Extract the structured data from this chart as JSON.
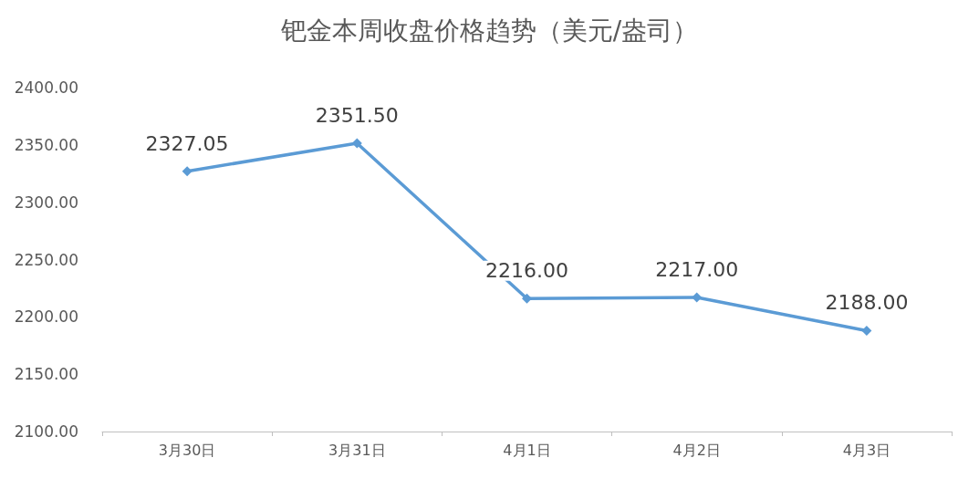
{
  "chart_data": {
    "type": "line",
    "title": "钯金本周收盘价格趋势（美元/盎司）",
    "categories": [
      "3月30日",
      "3月31日",
      "4月1日",
      "4月2日",
      "4月3日"
    ],
    "series": [
      {
        "color": "#5b9bd5",
        "values": [
          2327.05,
          2351.5,
          2216,
          2217,
          2188
        ],
        "value_labels": [
          "2327.05",
          "2351.50",
          "2216.00",
          "2217.00",
          "2188.00"
        ]
      }
    ],
    "ylim": [
      2100,
      2400
    ],
    "yticks": [
      {
        "value": 2100,
        "label": "2100.00"
      },
      {
        "value": 2150,
        "label": "2150.00"
      },
      {
        "value": 2200,
        "label": "2200.00"
      },
      {
        "value": 2250,
        "label": "2250.00"
      },
      {
        "value": 2300,
        "label": "2300.00"
      },
      {
        "value": 2350,
        "label": "2350.00"
      },
      {
        "value": 2400,
        "label": "2400.00"
      }
    ],
    "grid": false,
    "marker": "diamond",
    "line_style": "solid"
  }
}
